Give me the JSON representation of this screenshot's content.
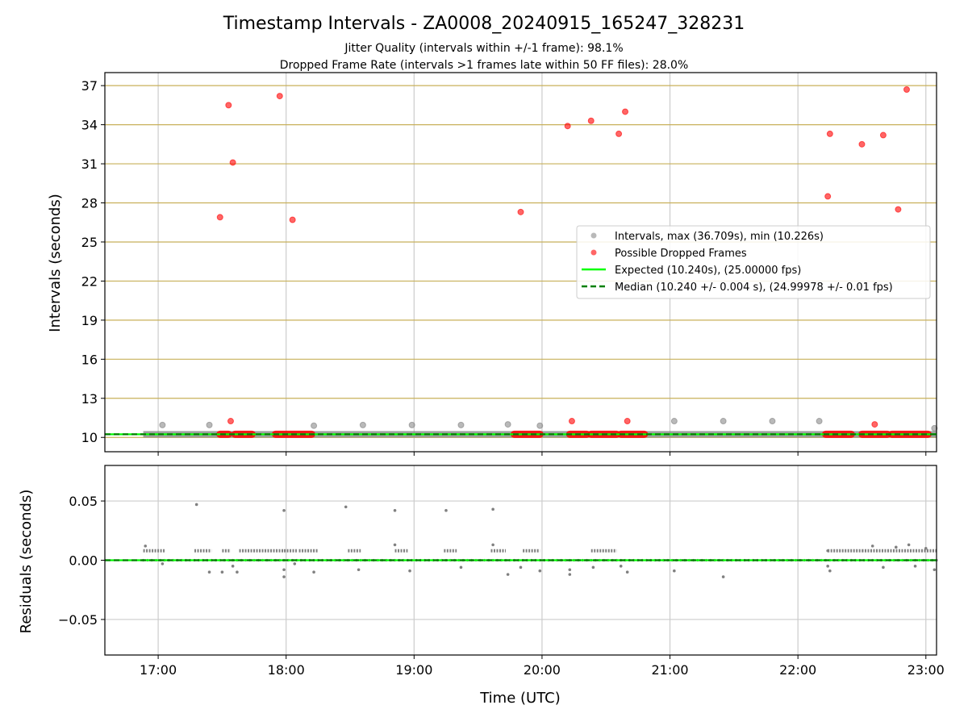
{
  "title": "Timestamp Intervals - ZA0008_20240915_165247_328231",
  "subtitle1": "Jitter Quality (intervals within +/-1 frame): 98.1%",
  "subtitle2": "Dropped Frame Rate (intervals >1 frames late within 50 FF files): 28.0%",
  "colors": {
    "intervals": "#808080",
    "dropped": "#ff0000",
    "expected": "#00ff00",
    "median": "#008000",
    "hgrid": "#c8b05a",
    "vgrid": "#cccccc"
  },
  "chart_data": [
    {
      "type": "scatter",
      "ylabel": "Intervals (seconds)",
      "xlim": [
        "16:35",
        "23:05"
      ],
      "ylim": [
        8.9,
        38.0
      ],
      "yticks": [
        10,
        13,
        16,
        19,
        22,
        25,
        28,
        31,
        34,
        37
      ],
      "ytick_labels": [
        "10",
        "13",
        "16",
        "19",
        "22",
        "25",
        "28",
        "31",
        "34",
        "37"
      ],
      "grid": true,
      "legend_position": "center-right",
      "legend": [
        "Intervals, max (36.709s), min (10.226s)",
        "Possible Dropped Frames",
        "Expected (10.240s), (25.00000 fps)",
        "Median (10.240 +/- 0.004 s), (24.99978 +/- 0.01 fps)"
      ],
      "expected_interval": 10.24,
      "median_interval": 10.24,
      "interval_band": {
        "x_start": "16:53",
        "x_end": "23:05",
        "y": 10.24
      },
      "interval_points": [
        {
          "x": "17:02",
          "y": 10.95
        },
        {
          "x": "17:24",
          "y": 10.95
        },
        {
          "x": "18:13",
          "y": 10.9
        },
        {
          "x": "18:36",
          "y": 10.95
        },
        {
          "x": "18:59",
          "y": 10.95
        },
        {
          "x": "19:22",
          "y": 10.95
        },
        {
          "x": "19:44",
          "y": 11.0
        },
        {
          "x": "19:59",
          "y": 10.9
        },
        {
          "x": "21:02",
          "y": 11.25
        },
        {
          "x": "21:25",
          "y": 11.25
        },
        {
          "x": "21:48",
          "y": 11.25
        },
        {
          "x": "22:10",
          "y": 11.25
        },
        {
          "x": "23:04",
          "y": 10.7
        }
      ],
      "dropped_points": [
        {
          "x": "17:29",
          "y": 26.9
        },
        {
          "x": "17:33",
          "y": 35.5
        },
        {
          "x": "17:35",
          "y": 31.1
        },
        {
          "x": "17:34",
          "y": 11.25
        },
        {
          "x": "17:57",
          "y": 36.2
        },
        {
          "x": "18:03",
          "y": 26.7
        },
        {
          "x": "19:50",
          "y": 27.3
        },
        {
          "x": "20:12",
          "y": 33.9
        },
        {
          "x": "20:14",
          "y": 11.25
        },
        {
          "x": "20:23",
          "y": 34.3
        },
        {
          "x": "20:36",
          "y": 33.3
        },
        {
          "x": "20:39",
          "y": 35.0
        },
        {
          "x": "20:40",
          "y": 11.25
        },
        {
          "x": "22:14",
          "y": 28.5
        },
        {
          "x": "22:15",
          "y": 33.3
        },
        {
          "x": "22:30",
          "y": 32.5
        },
        {
          "x": "22:36",
          "y": 11.0
        },
        {
          "x": "22:40",
          "y": 33.2
        },
        {
          "x": "22:47",
          "y": 27.5
        },
        {
          "x": "22:51",
          "y": 36.7
        }
      ],
      "dropped_runs": [
        {
          "x_start": "17:29",
          "x_end": "17:33",
          "y": 10.24
        },
        {
          "x_start": "17:36",
          "x_end": "17:44",
          "y": 10.24
        },
        {
          "x_start": "17:55",
          "x_end": "18:12",
          "y": 10.24
        },
        {
          "x_start": "19:47",
          "x_end": "19:59",
          "y": 10.24
        },
        {
          "x_start": "20:13",
          "x_end": "20:21",
          "y": 10.24
        },
        {
          "x_start": "20:23",
          "x_end": "20:35",
          "y": 10.24
        },
        {
          "x_start": "20:37",
          "x_end": "20:48",
          "y": 10.24
        },
        {
          "x_start": "22:13",
          "x_end": "22:25",
          "y": 10.24
        },
        {
          "x_start": "22:30",
          "x_end": "22:42",
          "y": 10.24
        },
        {
          "x_start": "22:44",
          "x_end": "23:01",
          "y": 10.24
        }
      ]
    },
    {
      "type": "scatter",
      "xlabel": "Time (UTC)",
      "ylabel": "Residuals (seconds)",
      "xlim": [
        "16:35",
        "23:05"
      ],
      "ylim": [
        -0.08,
        0.08
      ],
      "yticks": [
        -0.05,
        0.0,
        0.05
      ],
      "ytick_labels": [
        "−0.05",
        "0.00",
        "0.05"
      ],
      "xticks": [
        "17:00",
        "18:00",
        "19:00",
        "20:00",
        "21:00",
        "22:00",
        "23:00"
      ],
      "grid": true,
      "baseline": 0.0,
      "level_runs": [
        {
          "x_start": "16:53",
          "x_end": "17:03",
          "y": 0.008
        },
        {
          "x_start": "17:17",
          "x_end": "17:25",
          "y": 0.008
        },
        {
          "x_start": "17:30",
          "x_end": "17:34",
          "y": 0.008
        },
        {
          "x_start": "17:38",
          "x_end": "17:59",
          "y": 0.008
        },
        {
          "x_start": "17:59",
          "x_end": "18:05",
          "y": 0.008
        },
        {
          "x_start": "18:06",
          "x_end": "18:15",
          "y": 0.008
        },
        {
          "x_start": "18:29",
          "x_end": "18:35",
          "y": 0.008
        },
        {
          "x_start": "18:51",
          "x_end": "18:57",
          "y": 0.008
        },
        {
          "x_start": "19:14",
          "x_end": "19:20",
          "y": 0.008
        },
        {
          "x_start": "19:36",
          "x_end": "19:43",
          "y": 0.008
        },
        {
          "x_start": "19:51",
          "x_end": "19:59",
          "y": 0.008
        },
        {
          "x_start": "20:23",
          "x_end": "20:35",
          "y": 0.008
        },
        {
          "x_start": "22:14",
          "x_end": "22:30",
          "y": 0.008
        },
        {
          "x_start": "22:30",
          "x_end": "23:05",
          "y": 0.008
        }
      ],
      "points": [
        {
          "x": "16:54",
          "y": 0.012
        },
        {
          "x": "17:02",
          "y": -0.003
        },
        {
          "x": "17:18",
          "y": 0.047
        },
        {
          "x": "17:24",
          "y": -0.01
        },
        {
          "x": "17:30",
          "y": -0.01
        },
        {
          "x": "17:35",
          "y": -0.005
        },
        {
          "x": "17:37",
          "y": -0.01
        },
        {
          "x": "17:59",
          "y": 0.042
        },
        {
          "x": "17:59",
          "y": -0.008
        },
        {
          "x": "17:59",
          "y": -0.014
        },
        {
          "x": "18:04",
          "y": -0.003
        },
        {
          "x": "18:13",
          "y": -0.01
        },
        {
          "x": "18:28",
          "y": 0.045
        },
        {
          "x": "18:34",
          "y": -0.008
        },
        {
          "x": "18:51",
          "y": 0.042
        },
        {
          "x": "18:51",
          "y": 0.013
        },
        {
          "x": "18:58",
          "y": -0.009
        },
        {
          "x": "19:15",
          "y": 0.042
        },
        {
          "x": "19:22",
          "y": -0.006
        },
        {
          "x": "19:37",
          "y": 0.043
        },
        {
          "x": "19:37",
          "y": 0.013
        },
        {
          "x": "19:44",
          "y": -0.012
        },
        {
          "x": "19:50",
          "y": -0.006
        },
        {
          "x": "19:59",
          "y": -0.009
        },
        {
          "x": "20:13",
          "y": -0.008
        },
        {
          "x": "20:13",
          "y": -0.012
        },
        {
          "x": "20:24",
          "y": -0.006
        },
        {
          "x": "20:37",
          "y": -0.005
        },
        {
          "x": "20:40",
          "y": -0.01
        },
        {
          "x": "21:02",
          "y": -0.009
        },
        {
          "x": "21:25",
          "y": -0.014
        },
        {
          "x": "22:14",
          "y": -0.005
        },
        {
          "x": "22:15",
          "y": -0.009
        },
        {
          "x": "22:14",
          "y": 0.008
        },
        {
          "x": "22:35",
          "y": 0.012
        },
        {
          "x": "22:40",
          "y": -0.006
        },
        {
          "x": "22:46",
          "y": 0.011
        },
        {
          "x": "22:52",
          "y": 0.013
        },
        {
          "x": "22:55",
          "y": -0.005
        },
        {
          "x": "23:00",
          "y": 0.01
        },
        {
          "x": "23:04",
          "y": -0.008
        }
      ]
    }
  ]
}
